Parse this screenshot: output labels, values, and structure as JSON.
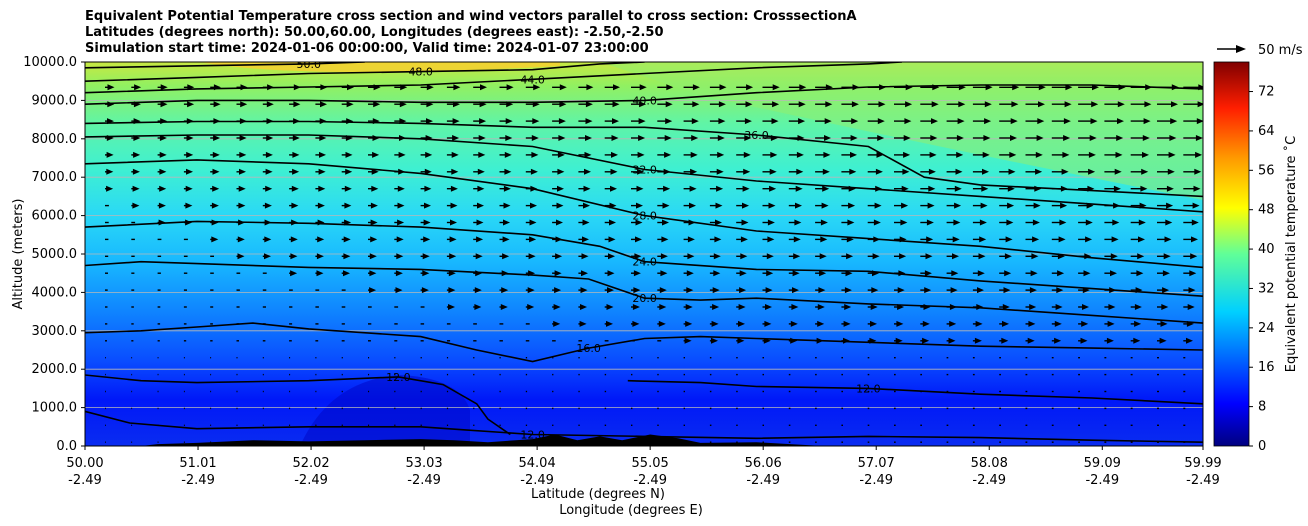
{
  "title_lines": [
    "Equivalent Potential Temperature cross section and wind vectors parallel to cross section: CrosssectionA",
    "Latitudes (degrees north): 50.00,60.00, Longitudes (degrees east): -2.50,-2.50",
    "Simulation start time: 2024-01-06 00:00:00, Valid time: 2024-01-07 23:00:00"
  ],
  "quiver_key": "50 m/s",
  "chart_data": {
    "type": "contour",
    "xlabel": "Latitude (degrees N)",
    "xlabel2": "Longitude (degrees E)",
    "ylabel": "Altitude (meters)",
    "colorbar_label": "Equivalent potential temperature ˚C",
    "ylim": [
      0,
      10000
    ],
    "xlim": [
      50.0,
      59.99
    ],
    "clim": [
      0,
      78
    ],
    "grid": "horizontal",
    "x_ticks": [
      {
        "lat": "50.00",
        "lon": "-2.49"
      },
      {
        "lat": "51.01",
        "lon": "-2.49"
      },
      {
        "lat": "52.02",
        "lon": "-2.49"
      },
      {
        "lat": "53.03",
        "lon": "-2.49"
      },
      {
        "lat": "54.04",
        "lon": "-2.49"
      },
      {
        "lat": "55.05",
        "lon": "-2.49"
      },
      {
        "lat": "56.06",
        "lon": "-2.49"
      },
      {
        "lat": "57.07",
        "lon": "-2.49"
      },
      {
        "lat": "58.08",
        "lon": "-2.49"
      },
      {
        "lat": "59.09",
        "lon": "-2.49"
      },
      {
        "lat": "59.99",
        "lon": "-2.49"
      }
    ],
    "y_ticks": [
      "0.0",
      "1000.0",
      "2000.0",
      "3000.0",
      "4000.0",
      "5000.0",
      "6000.0",
      "7000.0",
      "8000.0",
      "9000.0",
      "10000.0"
    ],
    "colorbar_ticks": [
      "0",
      "8",
      "16",
      "24",
      "32",
      "40",
      "48",
      "56",
      "64",
      "72"
    ],
    "contours": [
      {
        "level": 12,
        "label": "12.0",
        "points": [
          [
            50.0,
            900
          ],
          [
            50.4,
            600
          ],
          [
            51.0,
            450
          ],
          [
            52.0,
            500
          ],
          [
            53.0,
            500
          ],
          [
            53.4,
            420
          ],
          [
            54.0,
            300
          ],
          [
            55.0,
            250
          ],
          [
            56.0,
            200
          ],
          [
            57.0,
            250
          ],
          [
            58.0,
            220
          ],
          [
            59.0,
            150
          ],
          [
            59.99,
            100
          ]
        ]
      },
      {
        "level": 12,
        "label": "12.0",
        "points": [
          [
            50.0,
            1850
          ],
          [
            50.5,
            1700
          ],
          [
            51.0,
            1650
          ],
          [
            52.0,
            1700
          ],
          [
            52.8,
            1800
          ],
          [
            53.2,
            1600
          ],
          [
            53.5,
            1100
          ],
          [
            53.6,
            700
          ],
          [
            53.8,
            300
          ]
        ]
      },
      {
        "level": 12,
        "label": "12.0",
        "points": [
          [
            54.85,
            1700
          ],
          [
            55.5,
            1650
          ],
          [
            56.0,
            1550
          ],
          [
            57.0,
            1500
          ],
          [
            58.0,
            1350
          ],
          [
            59.0,
            1250
          ],
          [
            59.99,
            1100
          ]
        ]
      },
      {
        "level": 16,
        "label": "16.0",
        "points": [
          [
            50.0,
            2950
          ],
          [
            50.5,
            3000
          ],
          [
            51.0,
            3100
          ],
          [
            51.5,
            3200
          ],
          [
            52.0,
            3050
          ],
          [
            53.0,
            2850
          ],
          [
            53.5,
            2500
          ],
          [
            54.0,
            2200
          ],
          [
            54.5,
            2550
          ],
          [
            55.0,
            2800
          ],
          [
            55.5,
            2850
          ],
          [
            56.0,
            2800
          ],
          [
            57.0,
            2700
          ],
          [
            58.0,
            2600
          ],
          [
            59.0,
            2550
          ],
          [
            59.99,
            2500
          ]
        ]
      },
      {
        "level": 20,
        "label": "20.0",
        "points": [
          [
            50.0,
            4700
          ],
          [
            50.5,
            4800
          ],
          [
            51.0,
            4750
          ],
          [
            52.0,
            4650
          ],
          [
            53.0,
            4600
          ],
          [
            54.0,
            4450
          ],
          [
            54.5,
            4350
          ],
          [
            55.0,
            3850
          ],
          [
            55.5,
            3800
          ],
          [
            56.0,
            3850
          ],
          [
            57.0,
            3700
          ],
          [
            58.0,
            3600
          ],
          [
            59.0,
            3400
          ],
          [
            59.99,
            3200
          ]
        ]
      },
      {
        "level": 24,
        "label": "24.0",
        "points": [
          [
            50.0,
            5700
          ],
          [
            51.0,
            5850
          ],
          [
            52.0,
            5800
          ],
          [
            53.0,
            5700
          ],
          [
            54.0,
            5500
          ],
          [
            54.6,
            5200
          ],
          [
            55.0,
            4800
          ],
          [
            56.0,
            4600
          ],
          [
            57.0,
            4550
          ],
          [
            58.0,
            4300
          ],
          [
            59.0,
            4100
          ],
          [
            59.99,
            3900
          ]
        ]
      },
      {
        "level": 28,
        "label": "28.0",
        "points": [
          [
            50.0,
            7350
          ],
          [
            51.0,
            7450
          ],
          [
            52.0,
            7350
          ],
          [
            53.0,
            7100
          ],
          [
            54.0,
            6700
          ],
          [
            55.0,
            6000
          ],
          [
            56.0,
            5600
          ],
          [
            57.0,
            5400
          ],
          [
            58.0,
            5200
          ],
          [
            59.0,
            4900
          ],
          [
            59.99,
            4650
          ]
        ]
      },
      {
        "level": 32,
        "label": "32.0",
        "points": [
          [
            50.0,
            8050
          ],
          [
            51.0,
            8100
          ],
          [
            52.0,
            8100
          ],
          [
            53.0,
            8000
          ],
          [
            54.0,
            7800
          ],
          [
            55.0,
            7200
          ],
          [
            56.0,
            6900
          ],
          [
            57.0,
            6700
          ],
          [
            58.0,
            6500
          ],
          [
            59.0,
            6300
          ],
          [
            59.99,
            6100
          ]
        ]
      },
      {
        "level": 36,
        "label": "36.0",
        "points": [
          [
            50.0,
            8400
          ],
          [
            51.0,
            8450
          ],
          [
            52.0,
            8450
          ],
          [
            53.0,
            8400
          ],
          [
            54.0,
            8300
          ],
          [
            55.0,
            8300
          ],
          [
            56.0,
            8100
          ],
          [
            57.0,
            7800
          ],
          [
            57.5,
            7000
          ],
          [
            58.0,
            6800
          ],
          [
            59.0,
            6650
          ],
          [
            59.99,
            6500
          ]
        ]
      },
      {
        "level": 40,
        "label": "40.0",
        "points": [
          [
            50.0,
            8900
          ],
          [
            51.0,
            9000
          ],
          [
            52.0,
            9000
          ],
          [
            53.0,
            8950
          ],
          [
            54.0,
            8950
          ],
          [
            55.0,
            9000
          ],
          [
            56.0,
            9200
          ],
          [
            57.0,
            9350
          ],
          [
            58.0,
            9400
          ],
          [
            59.0,
            9400
          ],
          [
            59.99,
            9300
          ]
        ]
      },
      {
        "level": 44,
        "label": "44.0",
        "points": [
          [
            50.0,
            9200
          ],
          [
            51.0,
            9300
          ],
          [
            52.0,
            9350
          ],
          [
            53.0,
            9400
          ],
          [
            54.0,
            9550
          ],
          [
            55.0,
            9700
          ],
          [
            56.0,
            9850
          ],
          [
            57.0,
            9950
          ],
          [
            57.3,
            10000
          ]
        ]
      },
      {
        "level": 48,
        "label": "48.0",
        "points": [
          [
            50.0,
            9500
          ],
          [
            51.0,
            9600
          ],
          [
            52.0,
            9700
          ],
          [
            53.0,
            9750
          ],
          [
            54.0,
            9800
          ],
          [
            54.6,
            9950
          ],
          [
            55.0,
            10000
          ]
        ]
      },
      {
        "level": 50,
        "label": "50.0",
        "points": [
          [
            50.0,
            9850
          ],
          [
            51.0,
            9900
          ],
          [
            52.0,
            9950
          ],
          [
            52.5,
            10000
          ]
        ]
      }
    ],
    "terrain": [
      [
        50.0,
        0
      ],
      [
        50.5,
        0
      ],
      [
        50.65,
        50
      ],
      [
        51.0,
        80
      ],
      [
        51.5,
        150
      ],
      [
        52.0,
        120
      ],
      [
        52.5,
        150
      ],
      [
        53.0,
        180
      ],
      [
        53.3,
        150
      ],
      [
        53.6,
        100
      ],
      [
        54.0,
        180
      ],
      [
        54.2,
        300
      ],
      [
        54.4,
        150
      ],
      [
        54.6,
        250
      ],
      [
        54.8,
        150
      ],
      [
        55.05,
        300
      ],
      [
        55.3,
        200
      ],
      [
        55.5,
        80
      ],
      [
        56.0,
        100
      ],
      [
        56.3,
        50
      ],
      [
        56.6,
        0
      ],
      [
        59.99,
        0
      ]
    ]
  }
}
